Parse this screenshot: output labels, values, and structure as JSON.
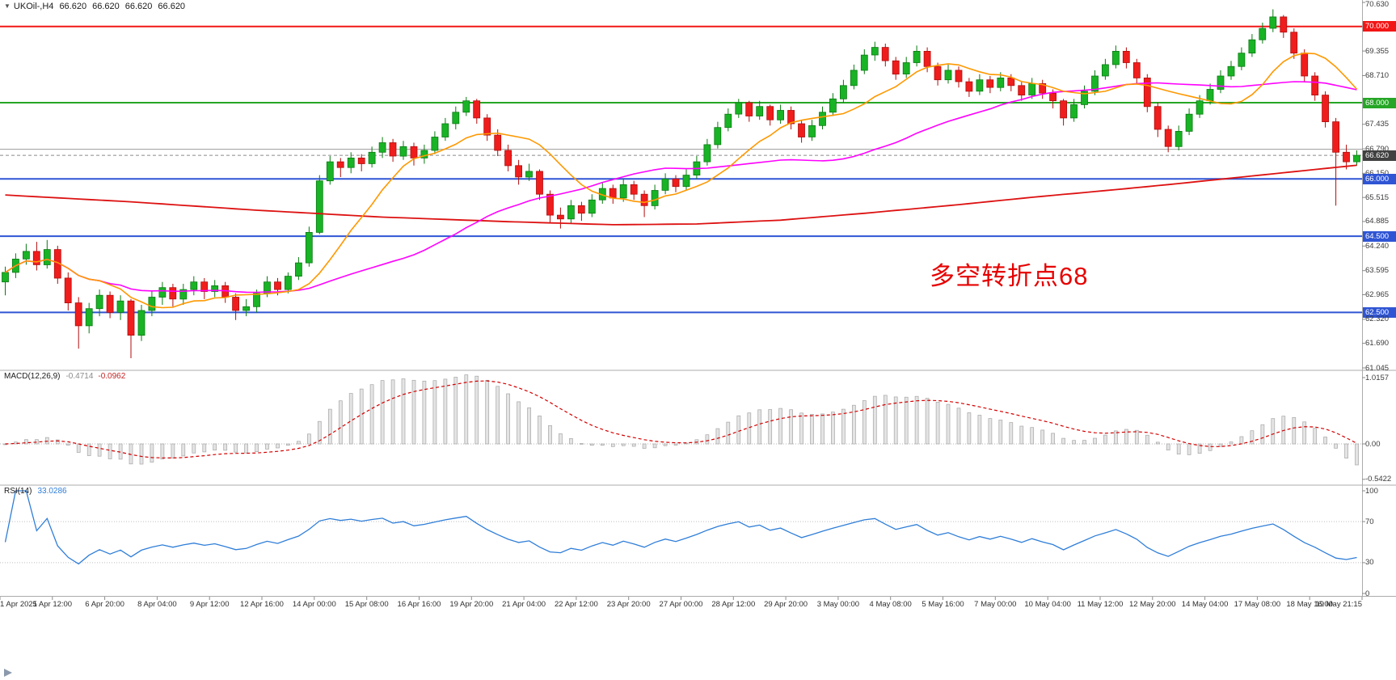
{
  "header": {
    "collapse_icon": "▼",
    "symbol_tf": "UKOil-,H4",
    "open": "66.620",
    "high": "66.620",
    "low": "66.620",
    "close": "66.620"
  },
  "annotation": {
    "text": "多空转折点68",
    "color": "#e60000"
  },
  "colors": {
    "up": "#19b326",
    "up_border": "#0a7a12",
    "down": "#f01d1d",
    "down_border": "#b00d0d",
    "ma_fast": "#ff9800",
    "ma_mid": "#ff00ff",
    "ma_slow": "#dd1111",
    "macd_hist_fill": "#e4e4e4",
    "macd_hist_border": "#a6a6a6",
    "macd_signal": "#d40000",
    "rsi": "#2f7ed8",
    "line_red": "#f21616",
    "line_green": "#26a626",
    "line_blue": "#2f55d4",
    "line_gray": "#9b9b9b",
    "current_badge": "#404040"
  },
  "hlines": [
    {
      "price": 70.0,
      "color": "#f21616",
      "width": 2
    },
    {
      "price": 68.0,
      "color": "#26a626",
      "width": 2
    },
    {
      "price": 66.78,
      "color": "#9b9b9b",
      "width": 1
    },
    {
      "price": 66.0,
      "color": "#2f55d4",
      "width": 2
    },
    {
      "price": 64.5,
      "color": "#2f55d4",
      "width": 2
    },
    {
      "price": 62.5,
      "color": "#2f55d4",
      "width": 2
    }
  ],
  "current_price_line": {
    "price": 66.62,
    "color": "#8a8a8a"
  },
  "price_axis": {
    "items": [
      {
        "text": "70.630",
        "price": 70.63,
        "style": "plain"
      },
      {
        "text": "70.000",
        "price": 70.0,
        "style": "badge",
        "bg": "#f21616"
      },
      {
        "text": "69.355",
        "price": 69.355,
        "style": "plain"
      },
      {
        "text": "68.710",
        "price": 68.71,
        "style": "plain"
      },
      {
        "text": "68.000",
        "price": 68.0,
        "style": "badge",
        "bg": "#26a626"
      },
      {
        "text": "67.435",
        "price": 67.435,
        "style": "plain"
      },
      {
        "text": "66.790",
        "price": 66.79,
        "style": "plain"
      },
      {
        "text": "66.620",
        "price": 66.62,
        "style": "badge",
        "bg": "#404040"
      },
      {
        "text": "66.150",
        "price": 66.15,
        "style": "plain"
      },
      {
        "text": "66.000",
        "price": 66.0,
        "style": "badge",
        "bg": "#2f55d4"
      },
      {
        "text": "65.515",
        "price": 65.515,
        "style": "plain"
      },
      {
        "text": "64.885",
        "price": 64.885,
        "style": "plain"
      },
      {
        "text": "64.500",
        "price": 64.5,
        "style": "badge",
        "bg": "#2f55d4"
      },
      {
        "text": "64.240",
        "price": 64.24,
        "style": "plain"
      },
      {
        "text": "63.595",
        "price": 63.595,
        "style": "plain"
      },
      {
        "text": "62.965",
        "price": 62.965,
        "style": "plain"
      },
      {
        "text": "62.500",
        "price": 62.5,
        "style": "badge",
        "bg": "#2f55d4"
      },
      {
        "text": "62.320",
        "price": 62.32,
        "style": "plain"
      },
      {
        "text": "61.690",
        "price": 61.69,
        "style": "plain"
      },
      {
        "text": "61.045",
        "price": 61.045,
        "style": "plain"
      }
    ]
  },
  "indicators": {
    "macd": {
      "name": "MACD(12,26,9)",
      "value_main": "-0.4714",
      "value_signal": "-0.0962",
      "axis": [
        {
          "text": "1.0157",
          "v": 1.0157
        },
        {
          "text": "0.00",
          "v": 0
        },
        {
          "text": "-0.5422",
          "v": -0.5422
        }
      ]
    },
    "rsi": {
      "name": "RSI(14)",
      "value": "33.0286",
      "levels": [
        70,
        30
      ],
      "axis": [
        {
          "text": "100",
          "v": 100
        },
        {
          "text": "70",
          "v": 70
        },
        {
          "text": "30",
          "v": 30
        },
        {
          "text": "0",
          "v": 0
        }
      ]
    }
  },
  "time_axis": {
    "labels": [
      "1 Apr 2021",
      "5 Apr 12:00",
      "6 Apr 20:00",
      "8 Apr 04:00",
      "9 Apr 12:00",
      "12 Apr 16:00",
      "14 Apr 00:00",
      "15 Apr 08:00",
      "16 Apr 16:00",
      "19 Apr 20:00",
      "21 Apr 04:00",
      "22 Apr 12:00",
      "23 Apr 20:00",
      "27 Apr 00:00",
      "28 Apr 12:00",
      "29 Apr 20:00",
      "3 May 00:00",
      "4 May 08:00",
      "5 May 16:00",
      "7 May 00:00",
      "10 May 04:00",
      "11 May 12:00",
      "12 May 20:00",
      "14 May 04:00",
      "17 May 08:00",
      "18 May 16:00",
      "19 May 21:15"
    ]
  },
  "chart_data": {
    "type": "candlestick",
    "symbol": "UKOil-",
    "timeframe": "H4",
    "ylim": [
      61.045,
      70.63
    ],
    "levels": [
      70.0,
      68.0,
      66.0,
      64.5,
      62.5
    ],
    "current_price": 66.62,
    "bars": [
      [
        63.3,
        63.7,
        62.95,
        63.55
      ],
      [
        63.55,
        64.05,
        63.4,
        63.9
      ],
      [
        63.9,
        64.3,
        63.75,
        64.1
      ],
      [
        64.1,
        64.35,
        63.6,
        63.75
      ],
      [
        63.75,
        64.4,
        63.65,
        64.15
      ],
      [
        64.15,
        64.25,
        63.25,
        63.4
      ],
      [
        63.4,
        63.55,
        62.55,
        62.75
      ],
      [
        62.75,
        62.9,
        61.55,
        62.15
      ],
      [
        62.15,
        62.75,
        61.95,
        62.6
      ],
      [
        62.6,
        63.1,
        62.4,
        62.95
      ],
      [
        62.95,
        63.05,
        62.35,
        62.5
      ],
      [
        62.5,
        62.95,
        62.3,
        62.8
      ],
      [
        62.8,
        62.85,
        61.3,
        61.9
      ],
      [
        61.9,
        62.7,
        61.75,
        62.55
      ],
      [
        62.55,
        63.05,
        62.4,
        62.9
      ],
      [
        62.9,
        63.3,
        62.7,
        63.15
      ],
      [
        63.15,
        63.25,
        62.65,
        62.85
      ],
      [
        62.85,
        63.25,
        62.7,
        63.1
      ],
      [
        63.1,
        63.45,
        62.95,
        63.3
      ],
      [
        63.3,
        63.4,
        62.85,
        63.05
      ],
      [
        63.05,
        63.35,
        62.9,
        63.2
      ],
      [
        63.2,
        63.3,
        62.75,
        62.9
      ],
      [
        62.9,
        63.0,
        62.3,
        62.55
      ],
      [
        62.55,
        62.85,
        62.4,
        62.65
      ],
      [
        62.65,
        63.1,
        62.5,
        63.0
      ],
      [
        63.0,
        63.45,
        62.9,
        63.3
      ],
      [
        63.3,
        63.4,
        62.95,
        63.1
      ],
      [
        63.1,
        63.55,
        63.0,
        63.45
      ],
      [
        63.45,
        63.95,
        63.35,
        63.8
      ],
      [
        63.8,
        64.75,
        63.7,
        64.6
      ],
      [
        64.6,
        66.1,
        64.55,
        65.95
      ],
      [
        65.95,
        66.6,
        65.85,
        66.45
      ],
      [
        66.45,
        66.55,
        66.05,
        66.3
      ],
      [
        66.3,
        66.7,
        66.15,
        66.55
      ],
      [
        66.55,
        66.65,
        66.2,
        66.4
      ],
      [
        66.4,
        66.85,
        66.3,
        66.7
      ],
      [
        66.7,
        67.1,
        66.55,
        66.95
      ],
      [
        66.95,
        67.05,
        66.45,
        66.6
      ],
      [
        66.6,
        67.0,
        66.5,
        66.85
      ],
      [
        66.85,
        66.95,
        66.35,
        66.55
      ],
      [
        66.55,
        66.9,
        66.4,
        66.75
      ],
      [
        66.75,
        67.25,
        66.65,
        67.1
      ],
      [
        67.1,
        67.6,
        67.0,
        67.45
      ],
      [
        67.45,
        67.9,
        67.3,
        67.75
      ],
      [
        67.75,
        68.15,
        67.65,
        68.05
      ],
      [
        68.05,
        68.1,
        67.45,
        67.6
      ],
      [
        67.6,
        67.7,
        67.0,
        67.15
      ],
      [
        67.15,
        67.3,
        66.6,
        66.75
      ],
      [
        66.75,
        66.9,
        66.2,
        66.35
      ],
      [
        66.35,
        66.5,
        65.85,
        66.05
      ],
      [
        66.05,
        66.4,
        65.95,
        66.2
      ],
      [
        66.2,
        66.25,
        65.45,
        65.6
      ],
      [
        65.6,
        65.7,
        64.85,
        65.05
      ],
      [
        65.05,
        65.25,
        64.7,
        64.95
      ],
      [
        64.95,
        65.45,
        64.85,
        65.3
      ],
      [
        65.3,
        65.4,
        64.9,
        65.1
      ],
      [
        65.1,
        65.6,
        65.0,
        65.45
      ],
      [
        65.45,
        65.9,
        65.35,
        65.75
      ],
      [
        65.75,
        65.85,
        65.35,
        65.5
      ],
      [
        65.5,
        66.0,
        65.4,
        65.85
      ],
      [
        65.85,
        65.95,
        65.45,
        65.6
      ],
      [
        65.6,
        65.7,
        65.0,
        65.3
      ],
      [
        65.3,
        65.85,
        65.2,
        65.7
      ],
      [
        65.7,
        66.15,
        65.6,
        66.0
      ],
      [
        66.0,
        66.1,
        65.65,
        65.8
      ],
      [
        65.8,
        66.25,
        65.7,
        66.1
      ],
      [
        66.1,
        66.6,
        66.0,
        66.45
      ],
      [
        66.45,
        67.05,
        66.35,
        66.9
      ],
      [
        66.9,
        67.5,
        66.8,
        67.35
      ],
      [
        67.35,
        67.85,
        67.25,
        67.7
      ],
      [
        67.7,
        68.1,
        67.6,
        68.0
      ],
      [
        68.0,
        68.05,
        67.5,
        67.65
      ],
      [
        67.65,
        68.05,
        67.55,
        67.9
      ],
      [
        67.9,
        67.95,
        67.4,
        67.55
      ],
      [
        67.55,
        67.95,
        67.45,
        67.8
      ],
      [
        67.8,
        67.9,
        67.3,
        67.45
      ],
      [
        67.45,
        67.55,
        66.95,
        67.1
      ],
      [
        67.1,
        67.55,
        67.0,
        67.4
      ],
      [
        67.4,
        67.9,
        67.3,
        67.75
      ],
      [
        67.75,
        68.25,
        67.65,
        68.1
      ],
      [
        68.1,
        68.6,
        68.0,
        68.45
      ],
      [
        68.45,
        69.0,
        68.35,
        68.85
      ],
      [
        68.85,
        69.4,
        68.75,
        69.25
      ],
      [
        69.25,
        69.6,
        69.1,
        69.45
      ],
      [
        69.45,
        69.55,
        68.95,
        69.1
      ],
      [
        69.1,
        69.2,
        68.6,
        68.75
      ],
      [
        68.75,
        69.2,
        68.65,
        69.05
      ],
      [
        69.05,
        69.5,
        68.95,
        69.35
      ],
      [
        69.35,
        69.45,
        68.8,
        68.95
      ],
      [
        68.95,
        69.05,
        68.45,
        68.6
      ],
      [
        68.6,
        69.0,
        68.5,
        68.85
      ],
      [
        68.85,
        68.95,
        68.4,
        68.55
      ],
      [
        68.55,
        68.65,
        68.15,
        68.3
      ],
      [
        68.3,
        68.75,
        68.2,
        68.6
      ],
      [
        68.6,
        68.7,
        68.25,
        68.4
      ],
      [
        68.4,
        68.8,
        68.3,
        68.65
      ],
      [
        68.65,
        68.75,
        68.3,
        68.45
      ],
      [
        68.45,
        68.55,
        68.05,
        68.2
      ],
      [
        68.2,
        68.65,
        68.1,
        68.5
      ],
      [
        68.5,
        68.6,
        68.1,
        68.25
      ],
      [
        68.25,
        68.35,
        67.85,
        68.05
      ],
      [
        68.05,
        68.1,
        67.4,
        67.6
      ],
      [
        67.6,
        68.1,
        67.5,
        67.95
      ],
      [
        67.95,
        68.45,
        67.85,
        68.3
      ],
      [
        68.3,
        68.85,
        68.2,
        68.7
      ],
      [
        68.7,
        69.15,
        68.6,
        69.0
      ],
      [
        69.0,
        69.5,
        68.9,
        69.35
      ],
      [
        69.35,
        69.45,
        68.9,
        69.05
      ],
      [
        69.05,
        69.15,
        68.5,
        68.65
      ],
      [
        68.65,
        68.75,
        67.75,
        67.9
      ],
      [
        67.9,
        68.0,
        67.1,
        67.3
      ],
      [
        67.3,
        67.4,
        66.7,
        66.85
      ],
      [
        66.85,
        67.4,
        66.75,
        67.25
      ],
      [
        67.25,
        67.85,
        67.15,
        67.7
      ],
      [
        67.7,
        68.2,
        67.6,
        68.05
      ],
      [
        68.05,
        68.5,
        67.95,
        68.35
      ],
      [
        68.35,
        68.85,
        68.25,
        68.7
      ],
      [
        68.7,
        69.1,
        68.6,
        68.95
      ],
      [
        68.95,
        69.45,
        68.85,
        69.3
      ],
      [
        69.3,
        69.8,
        69.2,
        69.65
      ],
      [
        69.65,
        70.1,
        69.55,
        69.95
      ],
      [
        69.95,
        70.45,
        69.85,
        70.25
      ],
      [
        70.25,
        70.3,
        69.7,
        69.85
      ],
      [
        69.85,
        69.95,
        69.15,
        69.3
      ],
      [
        69.3,
        69.4,
        68.55,
        68.7
      ],
      [
        68.7,
        68.8,
        68.05,
        68.2
      ],
      [
        68.2,
        68.3,
        67.35,
        67.5
      ],
      [
        67.5,
        67.6,
        65.3,
        66.7
      ],
      [
        66.7,
        66.9,
        66.25,
        66.45
      ],
      [
        66.45,
        66.75,
        66.35,
        66.62
      ]
    ],
    "slow_ma_points": [
      [
        0,
        65.58
      ],
      [
        12,
        65.4
      ],
      [
        24,
        65.18
      ],
      [
        36,
        65.0
      ],
      [
        48,
        64.88
      ],
      [
        58,
        64.8
      ],
      [
        66,
        64.82
      ],
      [
        74,
        64.92
      ],
      [
        82,
        65.1
      ],
      [
        90,
        65.3
      ],
      [
        98,
        65.52
      ],
      [
        106,
        65.72
      ],
      [
        112,
        65.88
      ],
      [
        118,
        66.05
      ],
      [
        124,
        66.22
      ],
      [
        129,
        66.36
      ]
    ]
  }
}
